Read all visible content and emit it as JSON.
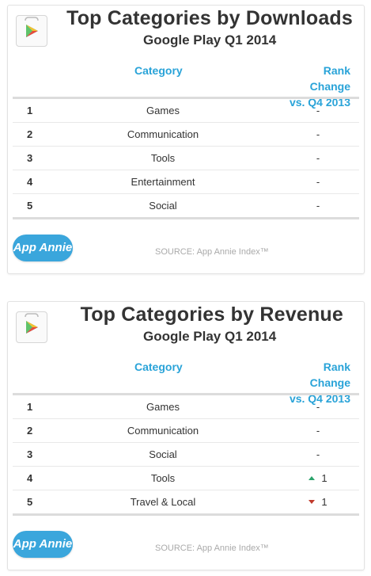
{
  "panels": [
    {
      "title": "Top Categories by Downloads",
      "subtitle": "Google Play Q1 2014",
      "col_category": "Category",
      "col_rank_line1": "Rank Change",
      "col_rank_line2": "vs. Q4 2013",
      "badge": "App Annie",
      "source": "SOURCE: App Annie Index™",
      "rows": [
        {
          "rank": "1",
          "category": "Games",
          "change": "-",
          "dir": "none"
        },
        {
          "rank": "2",
          "category": "Communication",
          "change": "-",
          "dir": "none"
        },
        {
          "rank": "3",
          "category": "Tools",
          "change": "-",
          "dir": "none"
        },
        {
          "rank": "4",
          "category": "Entertainment",
          "change": "-",
          "dir": "none"
        },
        {
          "rank": "5",
          "category": "Social",
          "change": "-",
          "dir": "none"
        }
      ]
    },
    {
      "title": "Top Categories by Revenue",
      "subtitle": "Google Play Q1 2014",
      "col_category": "Category",
      "col_rank_line1": "Rank Change",
      "col_rank_line2": "vs. Q4 2013",
      "badge": "App Annie",
      "source": "SOURCE: App Annie Index™",
      "rows": [
        {
          "rank": "1",
          "category": "Games",
          "change": "-",
          "dir": "none"
        },
        {
          "rank": "2",
          "category": "Communication",
          "change": "-",
          "dir": "none"
        },
        {
          "rank": "3",
          "category": "Social",
          "change": "-",
          "dir": "none"
        },
        {
          "rank": "4",
          "category": "Tools",
          "change": "1",
          "dir": "up"
        },
        {
          "rank": "5",
          "category": "Travel & Local",
          "change": "1",
          "dir": "down"
        }
      ]
    }
  ],
  "chart_data": [
    {
      "type": "table",
      "title": "Top Categories by Downloads",
      "subtitle": "Google Play Q1 2014",
      "columns": [
        "",
        "Category",
        "Rank Change vs. Q4 2013"
      ],
      "rows": [
        [
          "1",
          "Games",
          "-"
        ],
        [
          "2",
          "Communication",
          "-"
        ],
        [
          "3",
          "Tools",
          "-"
        ],
        [
          "4",
          "Entertainment",
          "-"
        ],
        [
          "5",
          "Social",
          "-"
        ]
      ]
    },
    {
      "type": "table",
      "title": "Top Categories by Revenue",
      "subtitle": "Google Play Q1 2014",
      "columns": [
        "",
        "Category",
        "Rank Change vs. Q4 2013"
      ],
      "rows": [
        [
          "1",
          "Games",
          "-"
        ],
        [
          "2",
          "Communication",
          "-"
        ],
        [
          "3",
          "Social",
          "-"
        ],
        [
          "4",
          "Tools",
          "up 1"
        ],
        [
          "5",
          "Travel & Local",
          "down 1"
        ]
      ]
    }
  ],
  "colors": {
    "accent": "#29a3d8",
    "badge": "#3aa6dc",
    "up": "#2aa36b",
    "down": "#c0392b"
  }
}
